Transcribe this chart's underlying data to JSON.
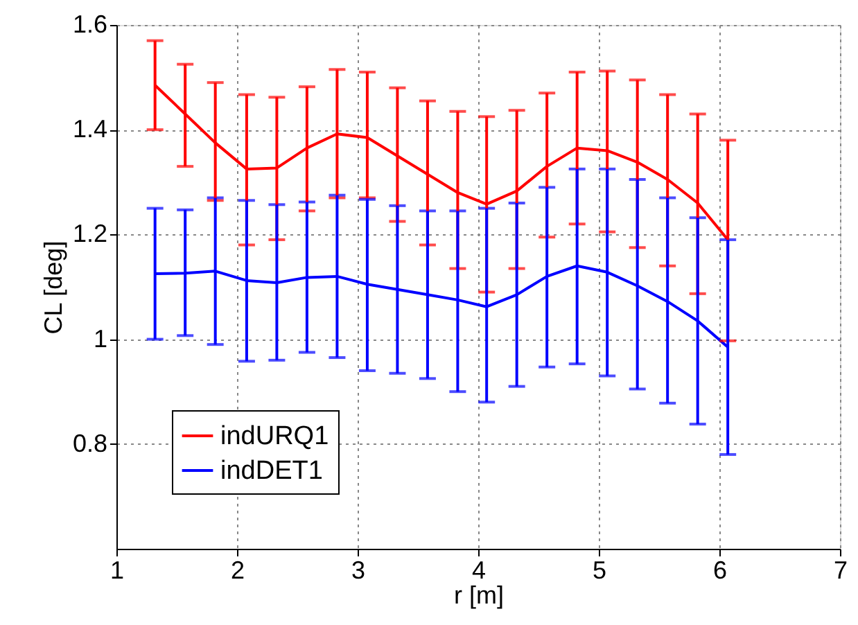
{
  "chart_data": {
    "type": "line",
    "xlabel": "r [m]",
    "ylabel": "CL [deg]",
    "x": [
      1.32,
      1.57,
      1.82,
      2.08,
      2.33,
      2.58,
      2.83,
      3.08,
      3.33,
      3.58,
      3.83,
      4.07,
      4.32,
      4.57,
      4.82,
      5.07,
      5.32,
      5.57,
      5.82,
      6.07
    ],
    "series": [
      {
        "name": "indURQ1",
        "color": "#ff0000",
        "values": [
          1.485,
          1.43,
          1.375,
          1.325,
          1.327,
          1.365,
          1.392,
          1.385,
          1.35,
          1.315,
          1.28,
          1.258,
          1.283,
          1.33,
          1.365,
          1.36,
          1.338,
          1.305,
          1.26,
          1.19
        ],
        "errors": [
          [
            1.4,
            1.57
          ],
          [
            1.33,
            1.525
          ],
          [
            1.265,
            1.49
          ],
          [
            1.18,
            1.467
          ],
          [
            1.19,
            1.462
          ],
          [
            1.245,
            1.482
          ],
          [
            1.27,
            1.515
          ],
          [
            1.27,
            1.51
          ],
          [
            1.225,
            1.48
          ],
          [
            1.18,
            1.455
          ],
          [
            1.135,
            1.435
          ],
          [
            1.09,
            1.425
          ],
          [
            1.135,
            1.437
          ],
          [
            1.195,
            1.47
          ],
          [
            1.22,
            1.51
          ],
          [
            1.205,
            1.512
          ],
          [
            1.175,
            1.495
          ],
          [
            1.14,
            1.467
          ],
          [
            1.087,
            1.43
          ],
          [
            0.997,
            1.38
          ]
        ]
      },
      {
        "name": "indDET1",
        "color": "#0000ff",
        "values": [
          1.125,
          1.126,
          1.13,
          1.112,
          1.108,
          1.118,
          1.12,
          1.105,
          1.095,
          1.085,
          1.075,
          1.062,
          1.085,
          1.12,
          1.14,
          1.128,
          1.102,
          1.072,
          1.035,
          0.985
        ],
        "errors": [
          [
            1.0,
            1.25
          ],
          [
            1.007,
            1.247
          ],
          [
            0.99,
            1.27
          ],
          [
            0.958,
            1.265
          ],
          [
            0.96,
            1.257
          ],
          [
            0.975,
            1.262
          ],
          [
            0.965,
            1.275
          ],
          [
            0.94,
            1.267
          ],
          [
            0.935,
            1.255
          ],
          [
            0.925,
            1.245
          ],
          [
            0.9,
            1.245
          ],
          [
            0.88,
            1.25
          ],
          [
            0.91,
            1.26
          ],
          [
            0.947,
            1.29
          ],
          [
            0.953,
            1.325
          ],
          [
            0.93,
            1.325
          ],
          [
            0.905,
            1.305
          ],
          [
            0.878,
            1.27
          ],
          [
            0.838,
            1.232
          ],
          [
            0.78,
            1.19
          ]
        ]
      }
    ],
    "xlim": [
      1,
      7
    ],
    "xticks": [
      1,
      2,
      3,
      4,
      5,
      6,
      7
    ],
    "ylim": [
      0.6,
      1.6
    ],
    "yticks": [
      0.8,
      1,
      1.2,
      1.4,
      1.6
    ],
    "grid": true,
    "legend": "bottom left",
    "marker": "none",
    "line_style": "solid"
  }
}
